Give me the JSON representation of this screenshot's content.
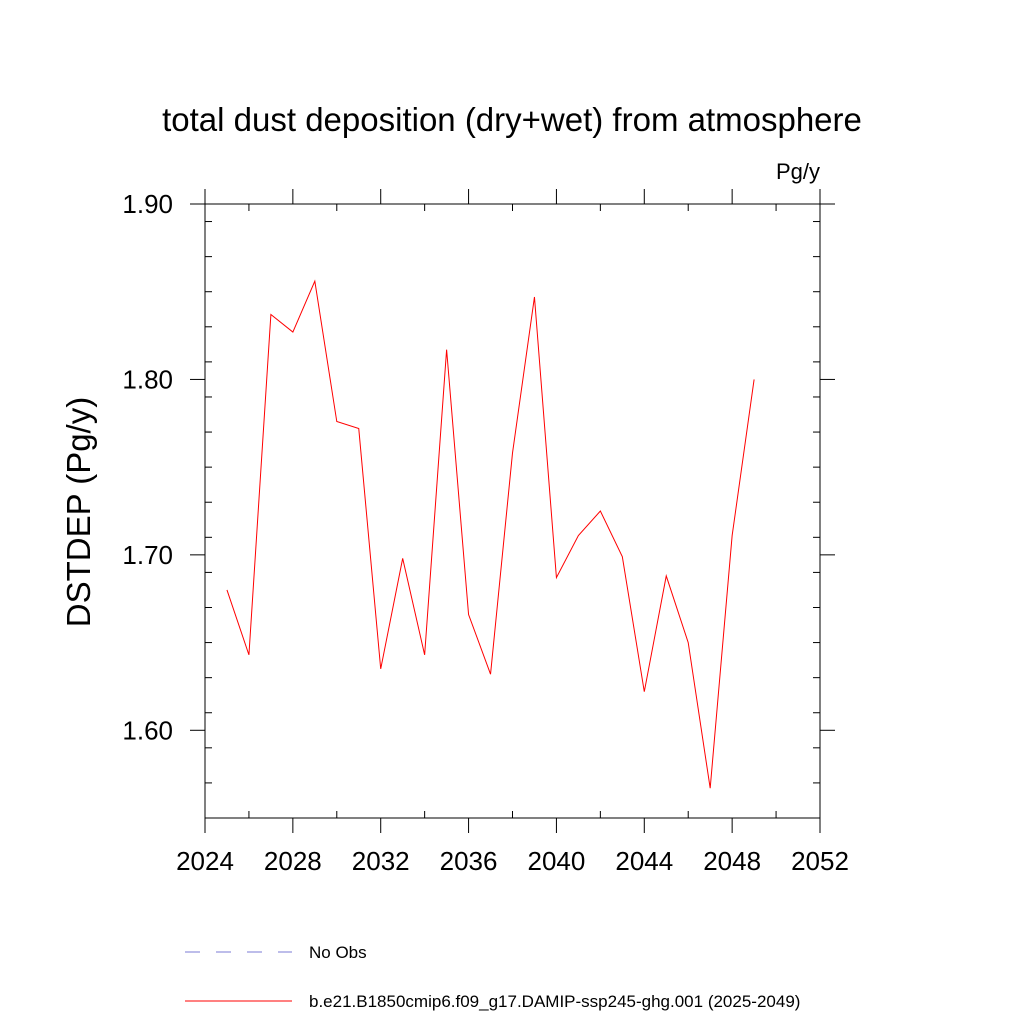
{
  "chart_data": {
    "type": "line",
    "title": "total dust deposition (dry+wet) from atmosphere",
    "units": "Pg/y",
    "ylabel": "DSTDEP  (Pg/y)",
    "xlabel": "",
    "xlim": [
      2024,
      2052
    ],
    "ylim": [
      1.55,
      1.9
    ],
    "x_ticks": [
      2024,
      2028,
      2032,
      2036,
      2040,
      2044,
      2048,
      2052
    ],
    "x_tick_labels": [
      "2024",
      "2028",
      "2032",
      "2036",
      "2040",
      "2044",
      "2048",
      "2052"
    ],
    "y_ticks": [
      1.6,
      1.7,
      1.8,
      1.9
    ],
    "y_tick_labels": [
      "1.60",
      "1.70",
      "1.80",
      "1.90"
    ],
    "y_minor_step": 0.02,
    "x_minor_step": 4,
    "grid": false,
    "legend_position": "bottom",
    "series": [
      {
        "name": "b.e21.B1850cmip6.f09_g17.DAMIP-ssp245-ghg.001 (2025-2049)",
        "color": "#ff0000",
        "style": "solid",
        "x": [
          2025,
          2026,
          2027,
          2028,
          2029,
          2030,
          2031,
          2032,
          2033,
          2034,
          2035,
          2036,
          2037,
          2038,
          2039,
          2040,
          2041,
          2042,
          2043,
          2044,
          2045,
          2046,
          2047,
          2048,
          2049
        ],
        "y": [
          1.68,
          1.643,
          1.837,
          1.827,
          1.856,
          1.776,
          1.772,
          1.635,
          1.698,
          1.643,
          1.817,
          1.666,
          1.632,
          1.758,
          1.847,
          1.687,
          1.711,
          1.725,
          1.699,
          1.622,
          1.688,
          1.65,
          1.567,
          1.711,
          1.8
        ]
      }
    ],
    "legend": [
      {
        "label": "No Obs",
        "color": "#7b7bd6",
        "style": "dashed"
      },
      {
        "label": "b.e21.B1850cmip6.f09_g17.DAMIP-ssp245-ghg.001 (2025-2049)",
        "color": "#ff0000",
        "style": "solid"
      }
    ]
  }
}
